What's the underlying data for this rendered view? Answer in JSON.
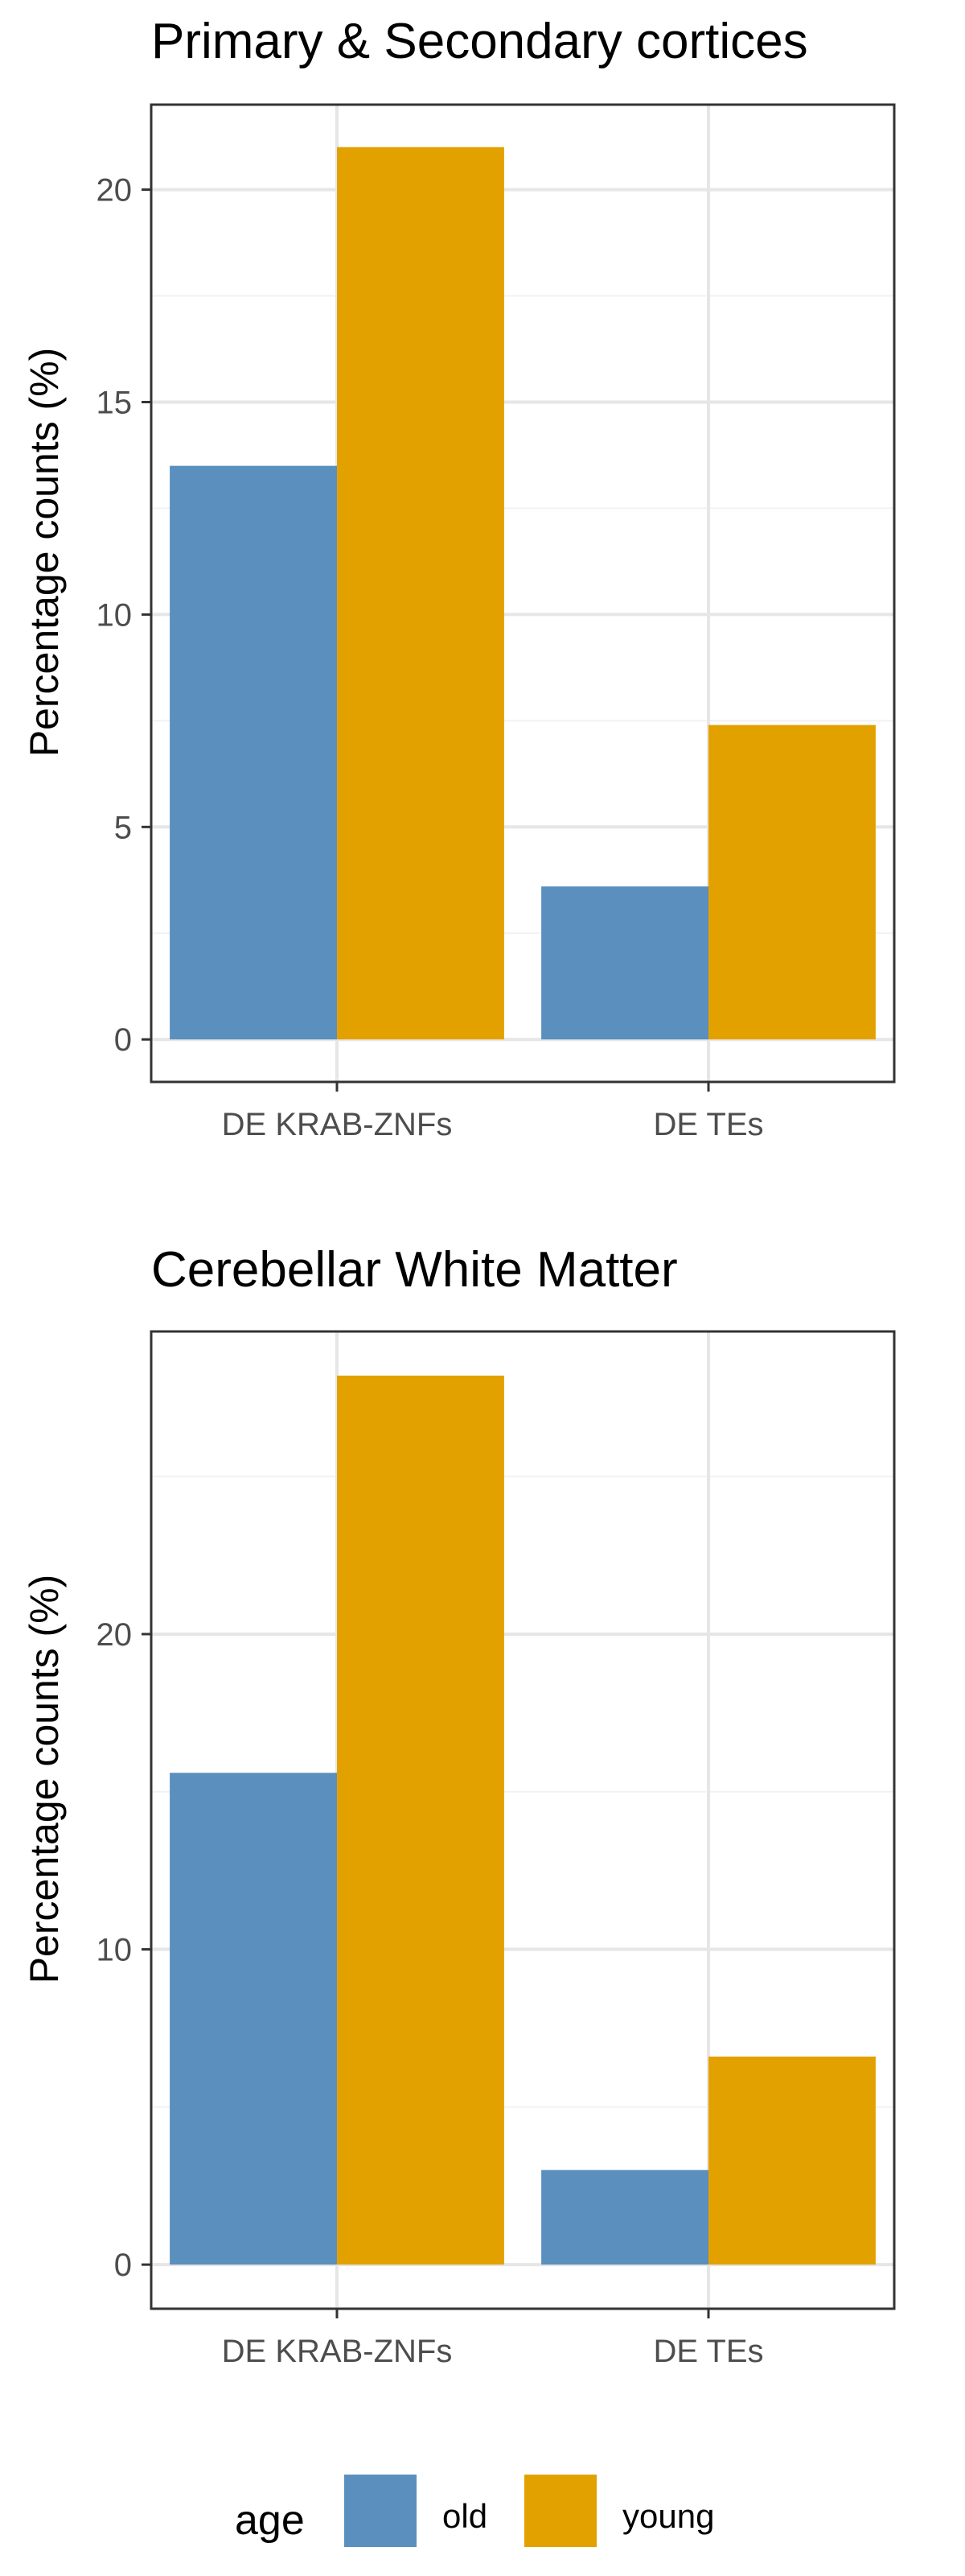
{
  "colors": {
    "old": "#5A8FBE",
    "young": "#E3A100",
    "grid_major": "#e6e6e6",
    "grid_minor": "#f2f2f2",
    "panel_border": "#333333",
    "tick_text": "#4d4d4d"
  },
  "legend": {
    "title": "age",
    "entries": [
      {
        "key": "old",
        "label": "old"
      },
      {
        "key": "young",
        "label": "young"
      }
    ],
    "placement": "bottom"
  },
  "chart_data": [
    {
      "type": "bar",
      "title": "Primary & Secondary cortices",
      "xlabel": "",
      "ylabel": "Percentage counts (%)",
      "categories": [
        "DE KRAB-ZNFs",
        "DE TEs"
      ],
      "series": [
        {
          "name": "old",
          "values": [
            13.5,
            3.6
          ]
        },
        {
          "name": "young",
          "values": [
            21.0,
            7.4
          ]
        }
      ],
      "ylim": [
        -1,
        22
      ],
      "yticks": [
        0,
        5,
        10,
        15,
        20
      ],
      "grid": true
    },
    {
      "type": "bar",
      "title": "Cerebellar White Matter",
      "xlabel": "",
      "ylabel": "Percentage counts (%)",
      "categories": [
        "DE KRAB-ZNFs",
        "DE TEs"
      ],
      "series": [
        {
          "name": "old",
          "values": [
            15.6,
            3.0
          ]
        },
        {
          "name": "young",
          "values": [
            28.2,
            6.6
          ]
        }
      ],
      "ylim": [
        -1.4,
        29.6
      ],
      "yticks": [
        0,
        10,
        20
      ],
      "grid": true
    }
  ]
}
